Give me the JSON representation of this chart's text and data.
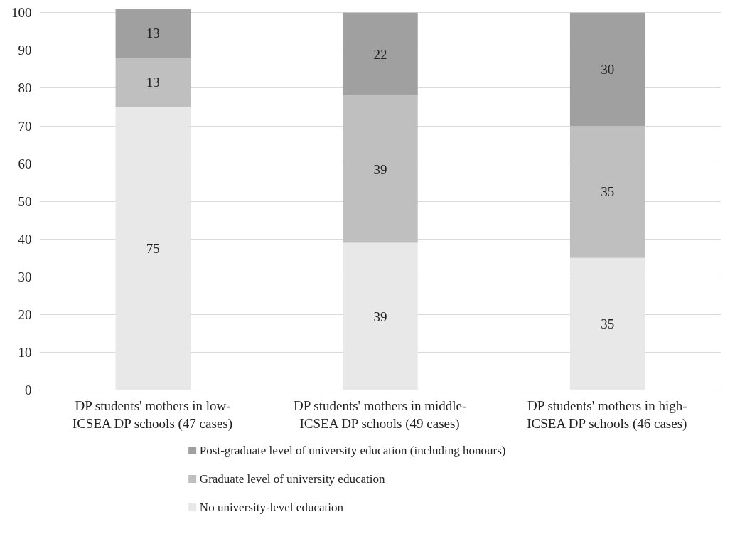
{
  "chart_data": {
    "type": "bar",
    "stacked": true,
    "categories": [
      "DP students' mothers in low-ICSEA DP schools (47 cases)",
      "DP students' mothers in middle-ICSEA DP schools (49 cases)",
      "DP students' mothers in high-ICSEA DP schools (46 cases)"
    ],
    "series": [
      {
        "name": "No university-level education",
        "color": "#e8e8e8",
        "values": [
          75,
          39,
          35
        ]
      },
      {
        "name": "Graduate level of university education",
        "color": "#bfbfbf",
        "values": [
          13,
          39,
          35
        ]
      },
      {
        "name": "Post-graduate level of university education (including honours)",
        "color": "#a0a0a0",
        "values": [
          13,
          22,
          30
        ]
      }
    ],
    "ylim": [
      0,
      101
    ],
    "yticks": [
      0,
      10,
      20,
      30,
      40,
      50,
      60,
      70,
      80,
      90,
      100
    ],
    "grid": "y",
    "legend": "bottom",
    "data_labels": true
  }
}
